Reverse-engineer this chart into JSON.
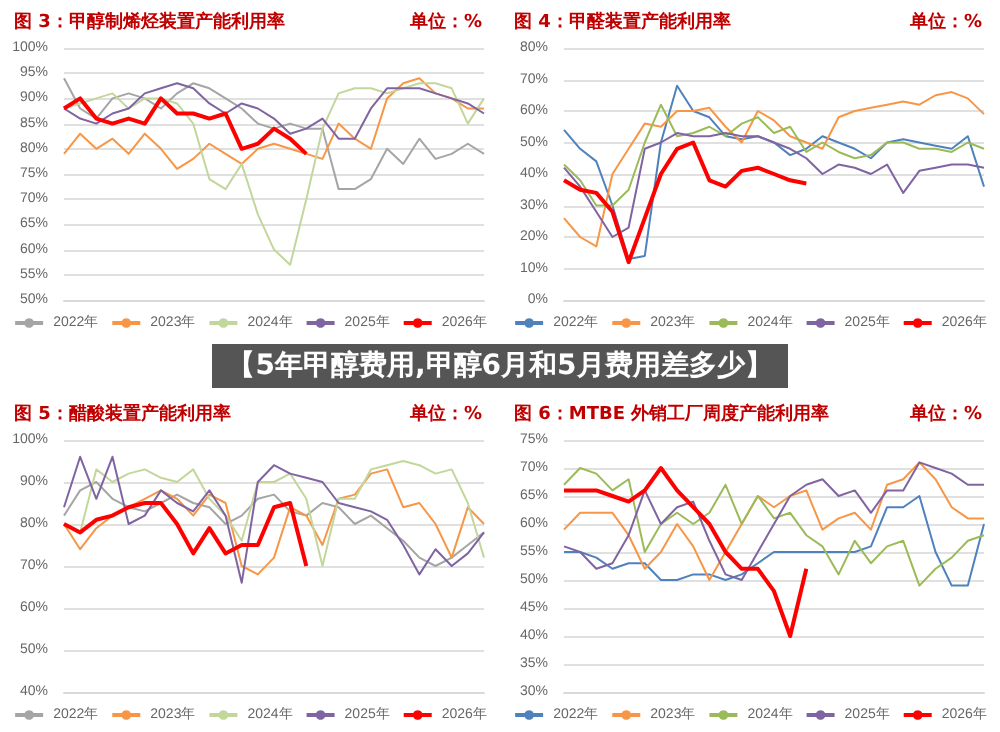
{
  "chart_data": [
    {
      "type": "line",
      "title": "图 3：甲醇制烯烃装置产能利用率",
      "subtitle": "单位：%",
      "annotations": [
        "【5年甲醇费用,甲醇6月和5月费用差多少】"
      ],
      "categories": [
        null,
        null,
        null,
        null,
        null,
        null,
        null,
        null,
        null,
        null,
        null,
        null,
        null,
        null,
        null,
        null,
        null,
        null,
        null,
        null,
        null,
        null,
        null,
        null,
        null,
        null,
        null
      ],
      "ylim": [
        50,
        100
      ],
      "yticks": [
        {
          "value": 50,
          "label": "50%"
        },
        {
          "value": 55,
          "label": "55%"
        },
        {
          "value": 60,
          "label": "60%"
        },
        {
          "value": 65,
          "label": "65%"
        },
        {
          "value": 70,
          "label": "70%"
        },
        {
          "value": 75,
          "label": "75%"
        },
        {
          "value": 80,
          "label": "80%"
        },
        {
          "value": 85,
          "label": "85%"
        },
        {
          "value": 90,
          "label": "90%"
        },
        {
          "value": 95,
          "label": "95%"
        },
        {
          "value": 100,
          "label": "100%"
        }
      ],
      "grid": "y",
      "legend": "bottom",
      "marker": "none",
      "line_style": "solid",
      "series": [
        {
          "name": "2022年",
          "color": "#a5a5a5",
          "values": [
            94,
            88,
            86,
            90,
            91,
            90,
            88,
            91,
            93,
            92,
            90,
            88,
            85,
            84,
            85,
            84,
            84,
            72,
            72,
            74,
            80,
            77,
            82,
            78,
            79,
            81,
            79
          ]
        },
        {
          "name": "2023年",
          "color": "#f79646",
          "values": [
            79,
            83,
            80,
            82,
            79,
            83,
            80,
            76,
            78,
            81,
            79,
            77,
            80,
            81,
            80,
            79,
            78,
            85,
            82,
            80,
            90,
            93,
            94,
            91,
            90,
            88,
            88
          ]
        },
        {
          "name": "2024年",
          "color": "#c3d69b",
          "values": [
            88,
            89,
            90,
            91,
            88,
            90,
            90,
            89,
            85,
            74,
            72,
            77,
            67,
            60,
            57,
            70,
            84,
            91,
            92,
            92,
            91,
            92,
            93,
            93,
            92,
            85,
            90
          ]
        },
        {
          "name": "2025年",
          "color": "#8064a2",
          "values": [
            88,
            86,
            85,
            87,
            88,
            91,
            92,
            93,
            92,
            89,
            87,
            89,
            88,
            86,
            83,
            84,
            86,
            82,
            82,
            88,
            92,
            92,
            92,
            91,
            90,
            89,
            87
          ]
        },
        {
          "name": "2026年",
          "color": "#ff0000",
          "values": [
            88,
            90,
            86,
            85,
            86,
            85,
            90,
            87,
            87,
            86,
            87,
            80,
            81,
            84,
            82,
            79,
            null,
            null,
            null,
            null,
            null,
            null,
            null,
            null,
            null,
            null,
            null
          ]
        }
      ]
    },
    {
      "type": "line",
      "title": "图 4：甲醛装置产能利用率",
      "subtitle": "单位：%",
      "categories": [
        null,
        null,
        null,
        null,
        null,
        null,
        null,
        null,
        null,
        null,
        null,
        null,
        null,
        null,
        null,
        null,
        null,
        null,
        null,
        null,
        null,
        null,
        null,
        null,
        null,
        null,
        null
      ],
      "ylim": [
        0,
        80
      ],
      "yticks": [
        {
          "value": 0,
          "label": "0%"
        },
        {
          "value": 10,
          "label": "10%"
        },
        {
          "value": 20,
          "label": "20%"
        },
        {
          "value": 30,
          "label": "30%"
        },
        {
          "value": 40,
          "label": "40%"
        },
        {
          "value": 50,
          "label": "50%"
        },
        {
          "value": 60,
          "label": "60%"
        },
        {
          "value": 70,
          "label": "70%"
        },
        {
          "value": 80,
          "label": "80%"
        }
      ],
      "grid": "y",
      "legend": "bottom",
      "marker": "none",
      "line_style": "solid",
      "series": [
        {
          "name": "2022年",
          "color": "#4f81bd",
          "values": [
            54,
            48,
            44,
            30,
            13,
            14,
            50,
            68,
            60,
            58,
            52,
            51,
            52,
            50,
            46,
            48,
            52,
            50,
            48,
            45,
            50,
            51,
            50,
            49,
            48,
            52,
            36
          ]
        },
        {
          "name": "2023年",
          "color": "#f79646",
          "values": [
            26,
            20,
            17,
            40,
            48,
            56,
            55,
            60,
            60,
            61,
            55,
            50,
            60,
            57,
            52,
            50,
            48,
            58,
            60,
            61,
            62,
            63,
            62,
            65,
            66,
            64,
            59
          ]
        },
        {
          "name": "2024年",
          "color": "#9bbb59",
          "values": [
            43,
            38,
            30,
            30,
            35,
            50,
            62,
            52,
            53,
            55,
            52,
            56,
            58,
            53,
            55,
            47,
            50,
            47,
            45,
            46,
            50,
            50,
            48,
            48,
            47,
            50,
            48
          ]
        },
        {
          "name": "2025年",
          "color": "#8064a2",
          "values": [
            42,
            36,
            28,
            20,
            23,
            48,
            50,
            53,
            52,
            52,
            53,
            52,
            52,
            50,
            48,
            45,
            40,
            43,
            42,
            40,
            43,
            34,
            41,
            42,
            43,
            43,
            42
          ]
        },
        {
          "name": "2026年",
          "color": "#ff0000",
          "values": [
            38,
            35,
            34,
            28,
            12,
            26,
            40,
            48,
            50,
            38,
            36,
            41,
            42,
            40,
            38,
            37,
            null,
            null,
            null,
            null,
            null,
            null,
            null,
            null,
            null,
            null,
            null
          ]
        }
      ]
    },
    {
      "type": "line",
      "title": "图 5：醋酸装置产能利用率",
      "subtitle": "单位：%",
      "categories": [
        null,
        null,
        null,
        null,
        null,
        null,
        null,
        null,
        null,
        null,
        null,
        null,
        null,
        null,
        null,
        null,
        null,
        null,
        null,
        null,
        null,
        null,
        null,
        null,
        null,
        null,
        null
      ],
      "ylim": [
        40,
        100
      ],
      "yticks": [
        {
          "value": 40,
          "label": "40%"
        },
        {
          "value": 50,
          "label": "50%"
        },
        {
          "value": 60,
          "label": "60%"
        },
        {
          "value": 70,
          "label": "70%"
        },
        {
          "value": 80,
          "label": "80%"
        },
        {
          "value": 90,
          "label": "90%"
        },
        {
          "value": 100,
          "label": "100%"
        }
      ],
      "grid": "y",
      "legend": "bottom",
      "marker": "none",
      "line_style": "solid",
      "series": [
        {
          "name": "2022年",
          "color": "#a5a5a5",
          "values": [
            82,
            88,
            90,
            86,
            84,
            83,
            85,
            87,
            85,
            84,
            80,
            82,
            86,
            87,
            83,
            82,
            85,
            84,
            80,
            82,
            79,
            76,
            72,
            70,
            72,
            75,
            78
          ]
        },
        {
          "name": "2023年",
          "color": "#f79646",
          "values": [
            80,
            74,
            79,
            82,
            84,
            86,
            88,
            86,
            82,
            87,
            85,
            70,
            68,
            72,
            84,
            82,
            75,
            86,
            87,
            92,
            93,
            84,
            85,
            80,
            72,
            84,
            80
          ]
        },
        {
          "name": "2024年",
          "color": "#c3d69b",
          "values": [
            80,
            78,
            93,
            90,
            92,
            93,
            91,
            90,
            93,
            86,
            82,
            76,
            90,
            90,
            92,
            86,
            70,
            86,
            86,
            93,
            94,
            95,
            94,
            92,
            93,
            85,
            72
          ]
        },
        {
          "name": "2025年",
          "color": "#8064a2",
          "values": [
            84,
            96,
            86,
            96,
            80,
            82,
            88,
            85,
            83,
            88,
            82,
            66,
            90,
            94,
            92,
            91,
            90,
            85,
            84,
            83,
            81,
            75,
            68,
            74,
            70,
            73,
            78
          ]
        },
        {
          "name": "2026年",
          "color": "#ff0000",
          "values": [
            80,
            78,
            81,
            82,
            84,
            85,
            85,
            80,
            73,
            79,
            73,
            75,
            75,
            84,
            85,
            70,
            null,
            null,
            null,
            null,
            null,
            null,
            null,
            null,
            null,
            null,
            null
          ]
        }
      ]
    },
    {
      "type": "line",
      "title": "图 6：MTBE 外销工厂周度产能利用率",
      "subtitle": "单位：%",
      "categories": [
        null,
        null,
        null,
        null,
        null,
        null,
        null,
        null,
        null,
        null,
        null,
        null,
        null,
        null,
        null,
        null,
        null,
        null,
        null,
        null,
        null,
        null,
        null,
        null,
        null,
        null,
        null
      ],
      "ylim": [
        30,
        75
      ],
      "yticks": [
        {
          "value": 30,
          "label": "30%"
        },
        {
          "value": 35,
          "label": "35%"
        },
        {
          "value": 40,
          "label": "40%"
        },
        {
          "value": 45,
          "label": "45%"
        },
        {
          "value": 50,
          "label": "50%"
        },
        {
          "value": 55,
          "label": "55%"
        },
        {
          "value": 60,
          "label": "60%"
        },
        {
          "value": 65,
          "label": "65%"
        },
        {
          "value": 70,
          "label": "70%"
        },
        {
          "value": 75,
          "label": "75%"
        }
      ],
      "grid": "y",
      "legend": "bottom",
      "marker": "none",
      "line_style": "solid",
      "series": [
        {
          "name": "2022年",
          "color": "#4f81bd",
          "values": [
            55,
            55,
            54,
            52,
            53,
            53,
            50,
            50,
            51,
            51,
            50,
            51,
            53,
            55,
            55,
            55,
            55,
            55,
            55,
            56,
            63,
            63,
            65,
            55,
            49,
            49,
            60
          ]
        },
        {
          "name": "2023年",
          "color": "#f79646",
          "values": [
            59,
            62,
            62,
            62,
            58,
            52,
            55,
            60,
            56,
            50,
            55,
            60,
            65,
            63,
            65,
            66,
            59,
            61,
            62,
            59,
            67,
            68,
            71,
            68,
            63,
            61,
            61
          ]
        },
        {
          "name": "2024年",
          "color": "#9bbb59",
          "values": [
            67,
            70,
            69,
            66,
            68,
            55,
            60,
            62,
            60,
            62,
            67,
            60,
            65,
            61,
            62,
            58,
            56,
            51,
            57,
            53,
            56,
            57,
            49,
            52,
            54,
            57,
            58
          ]
        },
        {
          "name": "2025年",
          "color": "#8064a2",
          "values": [
            56,
            55,
            52,
            53,
            58,
            66,
            60,
            63,
            64,
            57,
            51,
            50,
            55,
            60,
            65,
            67,
            68,
            65,
            66,
            62,
            66,
            66,
            71,
            70,
            69,
            67,
            67
          ]
        },
        {
          "name": "2026年",
          "color": "#ff0000",
          "values": [
            66,
            66,
            66,
            65,
            64,
            66,
            70,
            66,
            63,
            60,
            55,
            52,
            52,
            48,
            40,
            52,
            null,
            null,
            null,
            null,
            null,
            null,
            null,
            null,
            null,
            null,
            null
          ]
        }
      ]
    }
  ]
}
